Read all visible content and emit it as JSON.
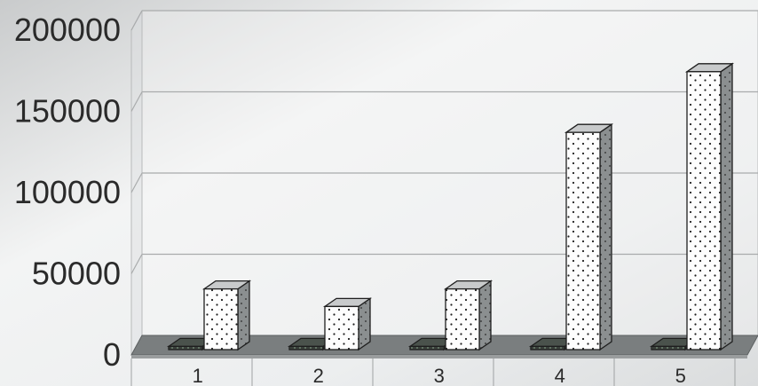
{
  "chart_data": {
    "type": "bar",
    "style": "3d-clustered-column",
    "categories": [
      "1",
      "2",
      "3",
      "4",
      "5"
    ],
    "series": [
      {
        "values": [
          2000,
          2000,
          2000,
          2000,
          2000
        ],
        "color": "#2f3530",
        "pattern": "dark-dotted"
      },
      {
        "values": [
          38000,
          27000,
          38000,
          136000,
          174000
        ],
        "color": "#ffffff",
        "pattern": "dotted"
      }
    ],
    "yticks": [
      "0",
      "50000",
      "100000",
      "150000",
      "200000"
    ],
    "ylim": [
      0,
      200000
    ],
    "grid": true,
    "title": "",
    "xlabel": "",
    "ylabel": ""
  }
}
